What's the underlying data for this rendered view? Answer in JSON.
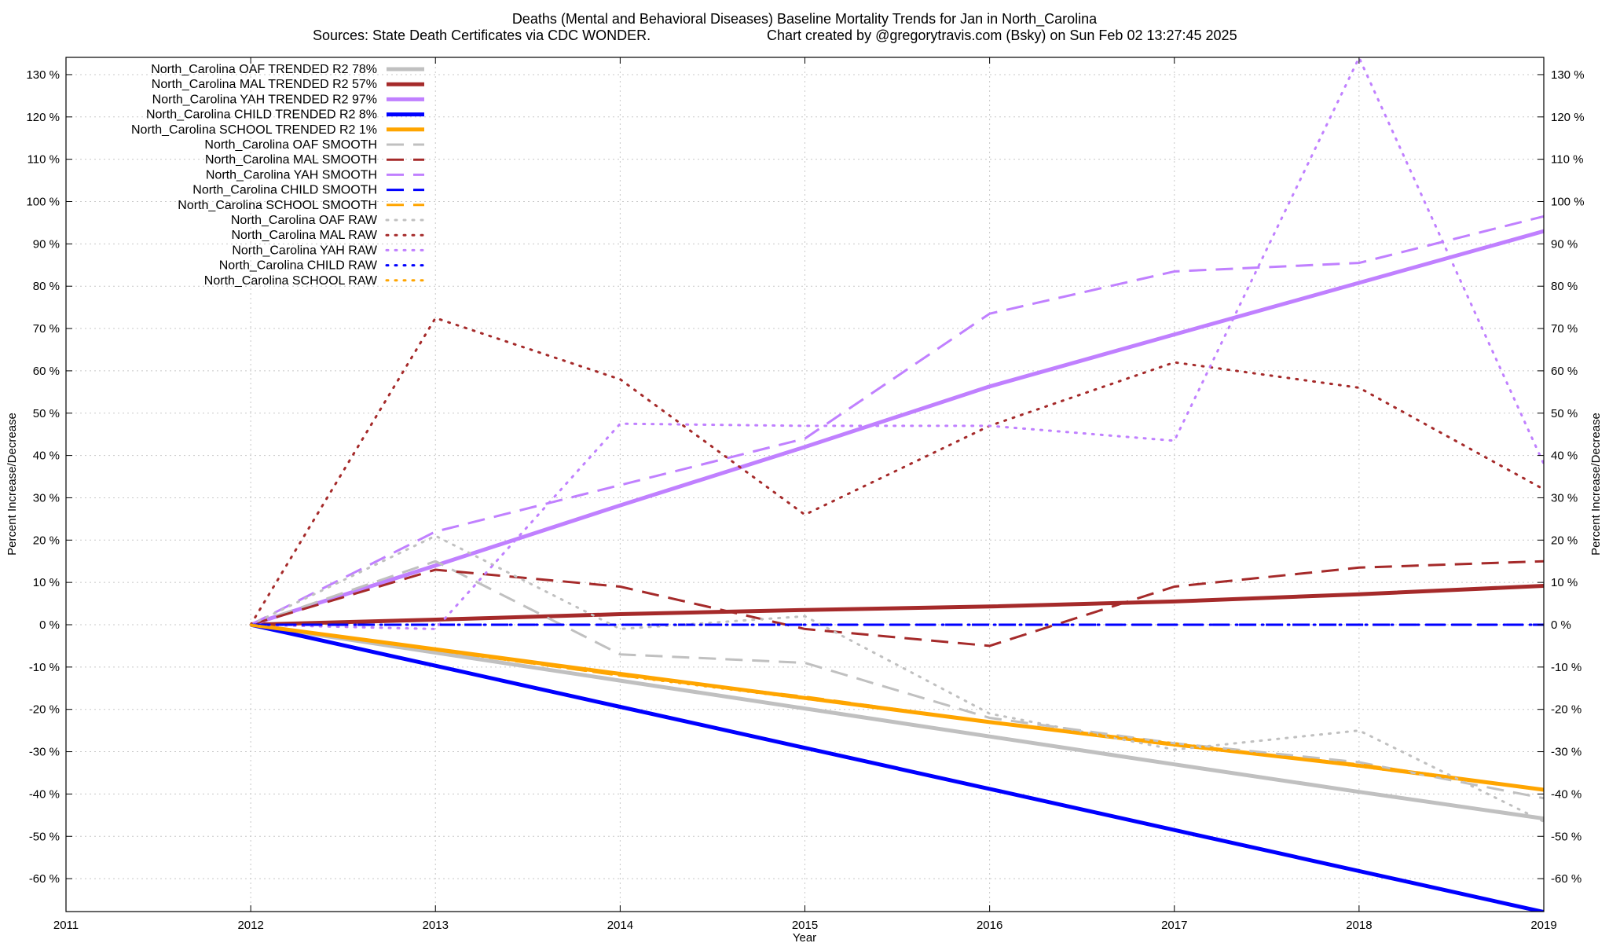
{
  "chart_data": {
    "type": "line",
    "title_line1": "Deaths (Mental and Behavioral Diseases)  Baseline Mortality Trends for Jan in North_Carolina",
    "title_line2_left": "Sources: State Death Certificates via CDC WONDER.",
    "title_line2_right": "Chart created by @gregorytravis.com (Bsky) on Sun Feb 02 13:27:45 2025",
    "xlabel": "Year",
    "ylabel": "Percent Increase/Decrease",
    "y2label": "Percent Increase/Decrease",
    "xlim": [
      2011,
      2019
    ],
    "ylim": [
      -68,
      133
    ],
    "x_ticks": [
      "2011",
      "2012",
      "2013",
      "2014",
      "2015",
      "2016",
      "2017",
      "2018",
      "2019"
    ],
    "y_ticks": [
      130,
      120,
      110,
      100,
      90,
      80,
      70,
      60,
      50,
      40,
      30,
      20,
      10,
      0,
      -10,
      -20,
      -30,
      -40,
      -50,
      -60
    ],
    "y_tick_labels": [
      "130 %",
      "120 %",
      "110 %",
      "100 %",
      "90 %",
      "80 %",
      "70 %",
      "60 %",
      "50 %",
      "40 %",
      "30 %",
      "20 %",
      "10 %",
      "0 %",
      "-10 %",
      "-20 %",
      "-30 %",
      "-40 %",
      "-50 %",
      "-60 %"
    ],
    "grid": true,
    "legend_position": "top-left",
    "x": [
      2012,
      2013,
      2014,
      2015,
      2016,
      2017,
      2018,
      2019
    ],
    "series": [
      {
        "name": "North_Carolina OAF TRENDED R2  78%",
        "color": "#c0c0c0",
        "style": "solid",
        "width": 5,
        "values": [
          0,
          -6.6,
          -13.2,
          -19.8,
          -26.4,
          -33.0,
          -39.5,
          -45.8
        ]
      },
      {
        "name": "North_Carolina MAL TRENDED R2  57%",
        "color": "#a52a2a",
        "style": "solid",
        "width": 5,
        "values": [
          0,
          1.2,
          2.5,
          3.5,
          4.3,
          5.5,
          7.2,
          9.2
        ]
      },
      {
        "name": "North_Carolina YAH TRENDED R2  97%",
        "color": "#c080ff",
        "style": "solid",
        "width": 5,
        "values": [
          0,
          14.0,
          28.2,
          42.0,
          56.3,
          68.6,
          80.8,
          93.0
        ]
      },
      {
        "name": "North_Carolina CHILD TRENDED R2   8%",
        "color": "#0000ff",
        "style": "solid",
        "width": 5,
        "values": [
          0,
          -9.7,
          -19.4,
          -29.1,
          -38.8,
          -48.5,
          -58.2,
          -67.9
        ]
      },
      {
        "name": "North_Carolina SCHOOL TRENDED R2   1%",
        "color": "#ffa500",
        "style": "solid",
        "width": 5,
        "values": [
          0,
          -5.8,
          -11.6,
          -17.3,
          -23.0,
          -28.3,
          -33.3,
          -39.0
        ]
      },
      {
        "name": "North_Carolina OAF SMOOTH",
        "color": "#c0c0c0",
        "style": "dashed",
        "width": 3,
        "values": [
          0,
          15.0,
          -7.0,
          -9.0,
          -22.0,
          -28.0,
          -32.5,
          -41.0
        ]
      },
      {
        "name": "North_Carolina MAL SMOOTH",
        "color": "#a52a2a",
        "style": "dashed",
        "width": 3,
        "values": [
          0,
          13.0,
          9.0,
          -1.0,
          -5.0,
          9.0,
          13.5,
          15.0
        ]
      },
      {
        "name": "North_Carolina YAH SMOOTH",
        "color": "#c080ff",
        "style": "dashed",
        "width": 3,
        "values": [
          0,
          22.0,
          33.0,
          44.0,
          73.5,
          83.5,
          85.5,
          96.5
        ]
      },
      {
        "name": "North_Carolina CHILD SMOOTH",
        "color": "#0000ff",
        "style": "dashed",
        "width": 3,
        "values": [
          0,
          0,
          0,
          0,
          0,
          0,
          0,
          0
        ]
      },
      {
        "name": "North_Carolina SCHOOL SMOOTH",
        "color": "#ffa500",
        "style": "dashed",
        "width": 3,
        "values": [
          0,
          -6.0,
          -12.0,
          -17.0,
          -23.0,
          -28.5,
          -33.0,
          -39.0
        ]
      },
      {
        "name": "North_Carolina OAF RAW",
        "color": "#c0c0c0",
        "style": "dotted",
        "width": 3,
        "values": [
          0,
          21.0,
          -1.0,
          2.0,
          -21.0,
          -29.5,
          -25.0,
          -46.5
        ]
      },
      {
        "name": "North_Carolina MAL RAW",
        "color": "#a52a2a",
        "style": "dotted",
        "width": 3,
        "values": [
          0,
          72.5,
          58.0,
          26.0,
          47.0,
          62.0,
          56.0,
          32.0
        ]
      },
      {
        "name": "North_Carolina YAH RAW",
        "color": "#c080ff",
        "style": "dotted",
        "width": 3,
        "values": [
          0,
          -1.0,
          47.5,
          47.0,
          47.0,
          43.5,
          134.0,
          38.0
        ]
      },
      {
        "name": "North_Carolina CHILD RAW",
        "color": "#0000ff",
        "style": "dotted",
        "width": 3,
        "values": [
          0,
          0,
          0,
          0,
          0,
          0,
          0,
          0
        ]
      },
      {
        "name": "North_Carolina SCHOOL RAW",
        "color": "#ffa500",
        "style": "dotted",
        "width": 3,
        "values": [
          0,
          -6.0,
          -12.0,
          -17.5,
          -23.0,
          -28.0,
          -33.5,
          -39.0
        ]
      }
    ]
  }
}
